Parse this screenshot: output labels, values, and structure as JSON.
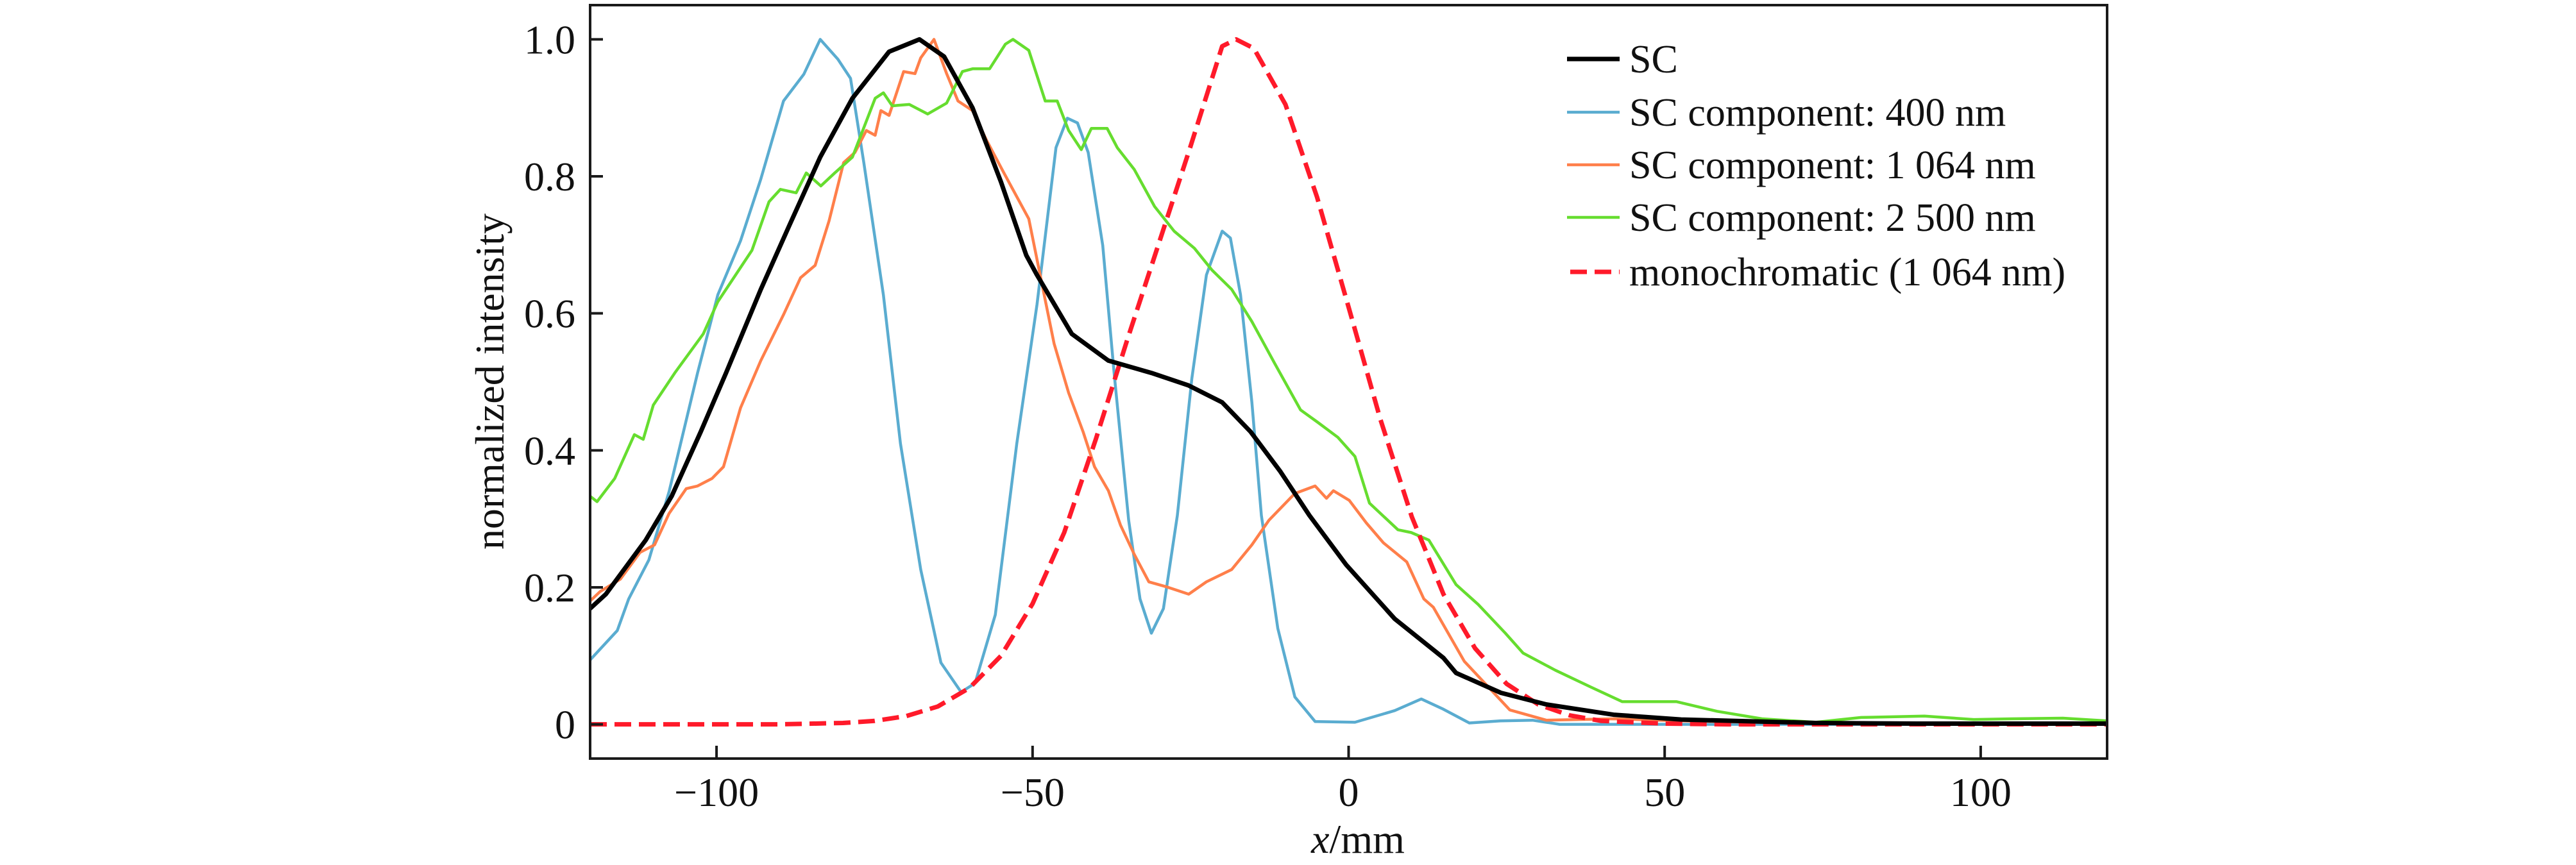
{
  "chart_data": {
    "type": "line",
    "title": "",
    "xlabel": "x/mm",
    "xlabel_var": "x",
    "xlabel_unit": "/mm",
    "ylabel": "normalized intensity",
    "xlim": [
      -120,
      120
    ],
    "ylim": [
      -0.05,
      1.05
    ],
    "xticks": [
      -100,
      -50,
      0,
      50,
      100
    ],
    "xtick_labels": [
      "−100",
      "−50",
      "0",
      "50",
      "100"
    ],
    "yticks": [
      0,
      0.2,
      0.4,
      0.6,
      0.8,
      1.0
    ],
    "ytick_labels": [
      "0",
      "0.2",
      "0.4",
      "0.6",
      "0.8",
      "1.0"
    ],
    "grid": false,
    "legend_position": "top-right",
    "series": [
      {
        "name": "SC",
        "color": "#000000",
        "style": "solid",
        "weight": "thick",
        "x": [
          -120,
          -117.5,
          -111.2,
          -107.1,
          -102.5,
          -98.5,
          -93,
          -88.5,
          -83.6,
          -78.5,
          -72.7,
          -67.9,
          -64,
          -59.5,
          -55,
          -51,
          -49.3,
          -43.8,
          -38,
          -31.2,
          -25.4,
          -20,
          -15.5,
          -10.8,
          -6.2,
          -0.4,
          7.3,
          15,
          17,
          24.1,
          31.3,
          41.9,
          52.6,
          73.9,
          90,
          120
        ],
        "y": [
          0.169,
          0.19,
          0.269,
          0.333,
          0.427,
          0.513,
          0.635,
          0.728,
          0.828,
          0.914,
          0.982,
          1.0,
          0.975,
          0.9,
          0.792,
          0.685,
          0.656,
          0.57,
          0.531,
          0.513,
          0.495,
          0.47,
          0.427,
          0.369,
          0.305,
          0.233,
          0.154,
          0.097,
          0.075,
          0.046,
          0.029,
          0.014,
          0.007,
          0.002,
          0.001,
          0.001
        ]
      },
      {
        "name": "SC component: 400 nm",
        "color": "#5aacd0",
        "style": "solid",
        "weight": "thin",
        "x": [
          -120,
          -115.7,
          -113.9,
          -110.7,
          -107.5,
          -103,
          -99.8,
          -96.2,
          -93,
          -89.4,
          -86.2,
          -83.6,
          -80.8,
          -78.8,
          -76.7,
          -73.6,
          -70.9,
          -67.7,
          -64.5,
          -61.3,
          -59.1,
          -55.9,
          -52.5,
          -49.3,
          -46.3,
          -44.5,
          -42.9,
          -41.2,
          -38.9,
          -37.1,
          -34.8,
          -33,
          -31.2,
          -29.3,
          -27.1,
          -24.8,
          -22.5,
          -20,
          -18.7,
          -17.1,
          -15.3,
          -13.8,
          -11.2,
          -8.5,
          -5.3,
          1,
          7.3,
          11.5,
          15,
          19.1,
          24,
          29.1,
          33.4,
          50,
          120
        ],
        "y": [
          0.094,
          0.137,
          0.183,
          0.24,
          0.34,
          0.513,
          0.627,
          0.706,
          0.796,
          0.91,
          0.949,
          1.0,
          0.971,
          0.943,
          0.82,
          0.627,
          0.41,
          0.226,
          0.09,
          0.047,
          0.06,
          0.16,
          0.41,
          0.613,
          0.842,
          0.885,
          0.878,
          0.835,
          0.699,
          0.513,
          0.298,
          0.183,
          0.133,
          0.169,
          0.305,
          0.505,
          0.656,
          0.72,
          0.71,
          0.627,
          0.47,
          0.305,
          0.14,
          0.04,
          0.004,
          0.003,
          0.02,
          0.037,
          0.022,
          0.002,
          0.005,
          0.006,
          0.0,
          0.0,
          0.0
        ]
      },
      {
        "name": "SC component: 1 064 nm",
        "color": "#ff7f4a",
        "style": "solid",
        "weight": "thin",
        "x": [
          -120,
          -118.4,
          -115.2,
          -112.1,
          -109.8,
          -107.5,
          -104.8,
          -103,
          -100.7,
          -98.9,
          -96.2,
          -93,
          -89.4,
          -86.7,
          -84.4,
          -82.2,
          -79.9,
          -78.1,
          -76.3,
          -74.9,
          -74,
          -72.7,
          -70.4,
          -68.6,
          -67.7,
          -65.6,
          -63.6,
          -61.8,
          -59.5,
          -57.3,
          -54.6,
          -50.6,
          -48.8,
          -46.6,
          -44.3,
          -42,
          -40.2,
          -38,
          -36.1,
          -33.9,
          -31.6,
          -28.9,
          -25.3,
          -22.5,
          -18.5,
          -15.3,
          -12.6,
          -8.5,
          -5.3,
          -3.5,
          -2.4,
          0.1,
          2.8,
          5.5,
          9.2,
          11.9,
          13.4,
          18.3,
          25.5,
          31.3,
          41.9,
          52.6,
          70,
          120
        ],
        "y": [
          0.18,
          0.194,
          0.212,
          0.251,
          0.262,
          0.308,
          0.344,
          0.348,
          0.359,
          0.376,
          0.462,
          0.531,
          0.598,
          0.652,
          0.67,
          0.735,
          0.82,
          0.835,
          0.867,
          0.86,
          0.896,
          0.889,
          0.953,
          0.95,
          0.973,
          1.0,
          0.95,
          0.91,
          0.896,
          0.853,
          0.806,
          0.738,
          0.656,
          0.556,
          0.484,
          0.427,
          0.376,
          0.341,
          0.291,
          0.248,
          0.208,
          0.201,
          0.19,
          0.208,
          0.226,
          0.262,
          0.298,
          0.337,
          0.348,
          0.33,
          0.341,
          0.327,
          0.294,
          0.265,
          0.237,
          0.183,
          0.171,
          0.092,
          0.021,
          0.006,
          0.008,
          0.005,
          0.002,
          0.001
        ]
      },
      {
        "name": "SC component: 2 500 nm",
        "color": "#66dd2f",
        "style": "solid",
        "weight": "thin",
        "x": [
          -120,
          -118.9,
          -116.1,
          -113,
          -111.6,
          -110,
          -106.6,
          -102.1,
          -99.8,
          -96.7,
          -94.4,
          -91.7,
          -89.9,
          -87.4,
          -85.8,
          -83.5,
          -81.3,
          -78.5,
          -76.7,
          -74.9,
          -73.6,
          -72.2,
          -69.5,
          -66.6,
          -63.6,
          -61.1,
          -59.5,
          -56.8,
          -54.3,
          -53.1,
          -50.6,
          -48,
          -46.1,
          -44.3,
          -42.3,
          -40.7,
          -38.2,
          -36.6,
          -33.9,
          -30.7,
          -27.6,
          -24.4,
          -21.6,
          -18.5,
          -15.3,
          -11.7,
          -7.6,
          -4.9,
          -1.7,
          1,
          3.3,
          7.8,
          9.9,
          12.7,
          17,
          20.5,
          24.8,
          27.6,
          32.7,
          38.4,
          43.3,
          51.9,
          58.3,
          65.4,
          73.9,
          81.1,
          91.1,
          98.9,
          105,
          113,
          120
        ],
        "y": [
          0.333,
          0.325,
          0.359,
          0.423,
          0.416,
          0.466,
          0.513,
          0.57,
          0.617,
          0.66,
          0.692,
          0.763,
          0.781,
          0.776,
          0.805,
          0.786,
          0.805,
          0.828,
          0.871,
          0.914,
          0.922,
          0.903,
          0.905,
          0.891,
          0.907,
          0.953,
          0.957,
          0.957,
          0.993,
          1.0,
          0.984,
          0.91,
          0.91,
          0.867,
          0.839,
          0.87,
          0.87,
          0.842,
          0.81,
          0.756,
          0.72,
          0.695,
          0.663,
          0.635,
          0.588,
          0.527,
          0.459,
          0.441,
          0.419,
          0.391,
          0.323,
          0.284,
          0.28,
          0.269,
          0.204,
          0.175,
          0.133,
          0.104,
          0.079,
          0.054,
          0.033,
          0.033,
          0.019,
          0.008,
          0.003,
          0.01,
          0.012,
          0.007,
          0.008,
          0.009,
          0.005
        ]
      },
      {
        "name": "monochromatic (1 064 nm)",
        "color": "#ff1a2a",
        "style": "dashed",
        "weight": "thick",
        "x": [
          -120,
          -110,
          -100,
          -90,
          -80,
          -75,
          -70,
          -65,
          -60,
          -55,
          -50,
          -45,
          -40,
          -35,
          -30,
          -25,
          -20,
          -17.8,
          -15,
          -10,
          -5,
          0,
          5,
          10,
          15,
          20,
          25,
          30,
          35,
          40,
          50,
          60,
          70,
          80,
          90,
          100,
          110,
          120
        ],
        "y": [
          0.0,
          0.0,
          0.0,
          0.0,
          0.002,
          0.005,
          0.012,
          0.026,
          0.053,
          0.1,
          0.176,
          0.28,
          0.416,
          0.562,
          0.703,
          0.844,
          0.99,
          1.0,
          0.987,
          0.905,
          0.77,
          0.609,
          0.446,
          0.303,
          0.19,
          0.111,
          0.059,
          0.029,
          0.013,
          0.005,
          0.001,
          0.0,
          0.0,
          0.0,
          0.0,
          0.0,
          0.0,
          0.0
        ]
      }
    ]
  }
}
